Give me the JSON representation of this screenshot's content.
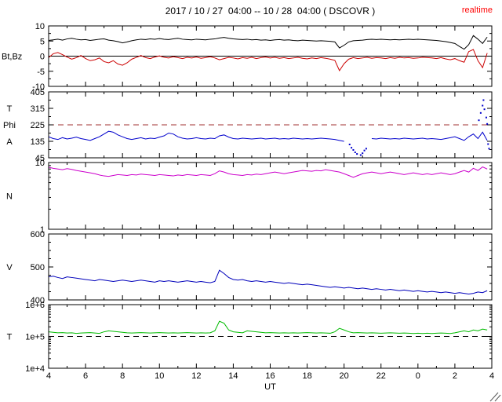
{
  "header": {
    "title": "2017 / 10 / 27  04:00 -- 10 / 28  04:00 ( DSCOVR )",
    "realtime": "realtime",
    "realtime_color": "#ff0000"
  },
  "x_axis": {
    "label": "UT",
    "start": 4,
    "end": 28,
    "tick_interval": 2,
    "tick_labels": [
      "4",
      "6",
      "8",
      "10",
      "12",
      "14",
      "16",
      "18",
      "20",
      "22",
      "0",
      "2",
      "4"
    ]
  },
  "chart_data": [
    {
      "type": "line",
      "id": "bt_bz",
      "ylabel": "Bt,Bz",
      "left_labels": [
        "Bt,Bz"
      ],
      "scale": "linear",
      "ylim": [
        -10,
        10
      ],
      "yticks": [
        10,
        5,
        0,
        -5,
        -10
      ],
      "ytick_labels": [
        "10",
        "5",
        "0",
        "-5",
        "-10"
      ],
      "yticks_minor": [
        7.5,
        2.5,
        -2.5,
        -7.5
      ],
      "ref_lines": [
        {
          "y": 0,
          "style": "solid",
          "color": "#000000"
        }
      ],
      "x_start": 4,
      "x_step": 0.25,
      "series": [
        {
          "name": "Bt",
          "color": "#000000",
          "values": [
            5.2,
            5.4,
            5.6,
            5.3,
            5.7,
            5.9,
            5.6,
            5.4,
            5.5,
            5.2,
            5.4,
            5.6,
            5.7,
            5.3,
            5.1,
            4.8,
            4.4,
            4.7,
            5.1,
            5.4,
            5.6,
            5.5,
            5.7,
            5.6,
            5.8,
            5.6,
            5.5,
            5.7,
            5.9,
            5.6,
            5.5,
            5.4,
            5.6,
            5.5,
            5.4,
            5.6,
            5.7,
            6.0,
            6.2,
            5.9,
            5.7,
            5.6,
            5.5,
            5.6,
            5.4,
            5.5,
            5.3,
            5.4,
            5.2,
            5.4,
            5.5,
            5.3,
            5.4,
            5.2,
            5.1,
            5.3,
            5.2,
            5.1,
            5.0,
            5.1,
            5.0,
            4.9,
            4.7,
            2.7,
            3.6,
            4.7,
            5.1,
            5.2,
            5.3,
            5.5,
            5.6,
            5.5,
            5.6,
            5.5,
            5.4,
            5.5,
            5.4,
            5.5,
            5.6,
            5.5,
            5.6,
            5.5,
            5.4,
            5.3,
            5.2,
            5.0,
            4.8,
            4.5,
            4.2,
            3.2,
            2.3,
            3.8,
            6.8,
            5.6,
            4.2,
            6.3
          ]
        },
        {
          "name": "Bz",
          "color": "#cc0000",
          "values": [
            -0.5,
            0.8,
            1.2,
            0.5,
            -0.3,
            -1.0,
            -0.5,
            0.2,
            -0.8,
            -1.5,
            -1.2,
            -0.6,
            -1.8,
            -2.2,
            -1.5,
            -2.6,
            -3.0,
            -2.2,
            -1.0,
            -0.4,
            0.2,
            -0.5,
            -0.8,
            -0.3,
            0.1,
            -0.4,
            -0.6,
            -0.2,
            -0.5,
            -0.8,
            -0.4,
            -0.6,
            -0.3,
            -0.7,
            -0.5,
            -0.2,
            -0.6,
            -1.2,
            -0.8,
            -0.4,
            -0.6,
            -0.9,
            -0.5,
            -0.7,
            -0.4,
            -0.8,
            -0.5,
            -0.3,
            -0.6,
            -0.4,
            -0.7,
            -0.5,
            -0.8,
            -0.6,
            -0.4,
            -0.7,
            -0.9,
            -0.6,
            -0.8,
            -0.5,
            -0.7,
            -1.0,
            -1.4,
            -4.8,
            -2.5,
            -1.0,
            -0.5,
            -0.8,
            -0.6,
            -0.4,
            -0.7,
            -0.5,
            -0.6,
            -0.8,
            -0.5,
            -0.7,
            -0.4,
            -0.6,
            -0.5,
            -0.7,
            -0.6,
            -0.4,
            -0.5,
            -0.6,
            -0.8,
            -0.5,
            -0.9,
            -1.2,
            -0.8,
            -1.5,
            -2.0,
            1.5,
            2.2,
            -1.5,
            -3.8,
            1.0
          ]
        }
      ]
    },
    {
      "type": "line",
      "id": "phi",
      "ylabel": "T Phi A",
      "left_labels": [
        "T",
        "Phi",
        "A"
      ],
      "scale": "linear",
      "ylim": [
        45,
        405
      ],
      "yticks": [
        405,
        315,
        225,
        135,
        45
      ],
      "ytick_labels": [
        "405",
        "315",
        "225",
        "135",
        "45"
      ],
      "yticks_minor": [
        360,
        270,
        180,
        90
      ],
      "ref_lines": [
        {
          "y": 225,
          "style": "dashed",
          "color": "#a03030"
        }
      ],
      "x_start": 4,
      "x_step": 0.25,
      "series": [
        {
          "name": "Phi",
          "color": "#0000cc",
          "values": [
            160,
            150,
            145,
            155,
            148,
            152,
            158,
            150,
            145,
            140,
            150,
            160,
            175,
            190,
            185,
            170,
            160,
            150,
            145,
            150,
            155,
            148,
            152,
            150,
            158,
            165,
            180,
            175,
            160,
            152,
            148,
            150,
            155,
            150,
            148,
            152,
            150,
            165,
            170,
            158,
            150,
            148,
            152,
            150,
            148,
            150,
            152,
            148,
            150,
            152,
            148,
            150,
            148,
            152,
            150,
            148,
            150,
            148,
            150,
            152,
            150,
            148,
            145,
            140,
            135,
            null,
            null,
            null,
            null,
            null,
            150,
            148,
            152,
            150,
            148,
            150,
            148,
            152,
            150,
            148,
            150,
            152,
            148,
            150,
            148,
            145,
            150,
            155,
            160,
            150,
            140,
            160,
            175,
            150,
            185,
            140
          ]
        }
      ],
      "scatter": [
        [
          20.3,
          118
        ],
        [
          20.4,
          100
        ],
        [
          20.5,
          88
        ],
        [
          20.6,
          75
        ],
        [
          20.7,
          66
        ],
        [
          20.9,
          60
        ],
        [
          21.0,
          70
        ],
        [
          21.1,
          85
        ],
        [
          21.2,
          95
        ],
        [
          27.3,
          250
        ],
        [
          27.4,
          290
        ],
        [
          27.5,
          330
        ],
        [
          27.55,
          360
        ],
        [
          27.6,
          310
        ],
        [
          27.7,
          265
        ],
        [
          27.75,
          230
        ],
        [
          27.8,
          120
        ],
        [
          27.85,
          95
        ]
      ]
    },
    {
      "type": "line",
      "id": "n",
      "ylabel": "N",
      "left_labels": [
        "N"
      ],
      "scale": "log",
      "ylim": [
        1,
        10
      ],
      "yticks": [
        10,
        1
      ],
      "ytick_labels": [
        "10",
        "1"
      ],
      "yticks_minor": [
        9,
        8,
        7,
        6,
        5,
        4,
        3,
        2
      ],
      "ref_lines": [],
      "x_start": 4,
      "x_step": 0.25,
      "series": [
        {
          "name": "N",
          "color": "#cc00cc",
          "values": [
            8.5,
            8.2,
            8.0,
            7.8,
            8.1,
            7.9,
            7.6,
            7.4,
            7.2,
            7.0,
            6.8,
            6.5,
            6.3,
            6.2,
            6.4,
            6.6,
            6.5,
            6.4,
            6.6,
            6.5,
            6.7,
            6.6,
            6.5,
            6.4,
            6.6,
            6.5,
            6.4,
            6.3,
            6.5,
            6.4,
            6.6,
            6.5,
            6.4,
            6.6,
            6.5,
            6.4,
            6.8,
            7.5,
            7.2,
            6.8,
            6.6,
            6.5,
            6.4,
            6.6,
            6.5,
            6.7,
            6.6,
            6.8,
            7.0,
            7.2,
            7.0,
            6.8,
            7.0,
            7.2,
            7.4,
            7.6,
            7.5,
            7.4,
            7.6,
            7.5,
            7.8,
            7.6,
            7.4,
            7.2,
            6.8,
            6.4,
            6.0,
            6.4,
            6.8,
            7.0,
            7.2,
            7.0,
            6.8,
            7.0,
            7.2,
            7.0,
            6.8,
            6.6,
            6.8,
            7.0,
            6.8,
            6.6,
            6.8,
            6.6,
            6.8,
            7.0,
            6.8,
            6.6,
            6.8,
            7.2,
            7.6,
            7.2,
            8.2,
            7.6,
            8.6,
            8.0
          ]
        }
      ]
    },
    {
      "type": "line",
      "id": "v",
      "ylabel": "V",
      "left_labels": [
        "V"
      ],
      "scale": "linear",
      "ylim": [
        400,
        600
      ],
      "yticks": [
        600,
        500,
        400
      ],
      "ytick_labels": [
        "600",
        "500",
        "400"
      ],
      "yticks_minor": [
        575,
        550,
        525,
        475,
        450,
        425
      ],
      "ref_lines": [],
      "x_start": 4,
      "x_step": 0.25,
      "series": [
        {
          "name": "V",
          "color": "#0000bb",
          "values": [
            470,
            472,
            468,
            465,
            470,
            468,
            466,
            464,
            462,
            460,
            458,
            462,
            460,
            458,
            456,
            458,
            460,
            458,
            456,
            458,
            460,
            458,
            456,
            454,
            458,
            456,
            458,
            456,
            454,
            456,
            458,
            456,
            454,
            456,
            454,
            452,
            456,
            490,
            480,
            468,
            462,
            460,
            462,
            458,
            456,
            458,
            456,
            454,
            456,
            454,
            452,
            450,
            452,
            450,
            448,
            446,
            448,
            446,
            444,
            442,
            440,
            438,
            440,
            438,
            436,
            438,
            436,
            434,
            436,
            434,
            432,
            434,
            432,
            430,
            432,
            430,
            428,
            430,
            428,
            426,
            428,
            426,
            424,
            426,
            424,
            422,
            424,
            422,
            420,
            422,
            420,
            418,
            420,
            424,
            422,
            428
          ]
        }
      ]
    },
    {
      "type": "line",
      "id": "temp",
      "ylabel": "T",
      "left_labels": [
        "T"
      ],
      "scale": "log",
      "ylim": [
        10000,
        1000000
      ],
      "yticks": [
        1000000,
        100000,
        10000
      ],
      "ytick_labels": [
        "1e+6",
        "1e+5",
        "1e+4"
      ],
      "yticks_minor": [
        900000,
        800000,
        700000,
        600000,
        500000,
        400000,
        300000,
        200000,
        90000,
        80000,
        70000,
        60000,
        50000,
        40000,
        30000,
        20000
      ],
      "ref_lines": [
        {
          "y": 100000,
          "style": "dashed",
          "color": "#000000"
        }
      ],
      "x_start": 4,
      "x_step": 0.25,
      "series": [
        {
          "name": "T",
          "color": "#00bb00",
          "values": [
            140000,
            135000,
            130000,
            132000,
            128000,
            130000,
            125000,
            128000,
            130000,
            132000,
            128000,
            125000,
            140000,
            150000,
            145000,
            140000,
            135000,
            130000,
            128000,
            130000,
            132000,
            130000,
            128000,
            130000,
            132000,
            130000,
            128000,
            130000,
            128000,
            130000,
            132000,
            130000,
            128000,
            130000,
            128000,
            130000,
            150000,
            300000,
            260000,
            160000,
            140000,
            135000,
            130000,
            150000,
            145000,
            140000,
            135000,
            130000,
            132000,
            130000,
            128000,
            130000,
            128000,
            130000,
            128000,
            130000,
            132000,
            130000,
            128000,
            130000,
            128000,
            126000,
            140000,
            180000,
            160000,
            140000,
            130000,
            132000,
            130000,
            128000,
            130000,
            128000,
            126000,
            128000,
            130000,
            128000,
            126000,
            128000,
            126000,
            124000,
            126000,
            124000,
            126000,
            124000,
            126000,
            128000,
            126000,
            124000,
            130000,
            140000,
            150000,
            140000,
            160000,
            150000,
            170000,
            160000
          ]
        }
      ]
    }
  ]
}
